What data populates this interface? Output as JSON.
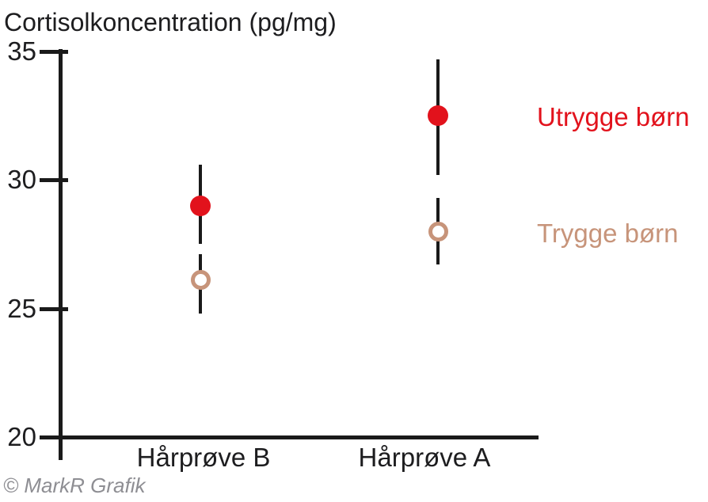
{
  "title": "Cortisolkoncentration (pg/mg)",
  "copyright": "© MarkR Grafik",
  "colors": {
    "utrygge_red": "#e2121c",
    "trygge_tan": "#c7947a",
    "axis_black": "#1a1a1a",
    "text_dark": "#1d1d1f",
    "copyright_gray": "#8e8e93"
  },
  "chart_data": {
    "type": "scatter",
    "title": "Cortisolkoncentration (pg/mg)",
    "ylabel": "Cortisolkoncentration (pg/mg)",
    "xlabel": "",
    "categories": [
      "Hårprøve B",
      "Hårprøve A"
    ],
    "series": [
      {
        "name": "Utrygge børn",
        "marker": "filled-circle",
        "color": "#e2121c",
        "values": [
          29.0,
          32.5
        ],
        "ci_low": [
          27.5,
          30.2
        ],
        "ci_high": [
          30.6,
          34.7
        ]
      },
      {
        "name": "Trygge børn",
        "marker": "open-circle",
        "color": "#c7947a",
        "values": [
          26.1,
          28.0
        ],
        "ci_low": [
          24.8,
          26.7
        ],
        "ci_high": [
          27.1,
          29.3
        ]
      }
    ],
    "ylim": [
      20,
      35
    ],
    "yticks": [
      35,
      30,
      25,
      20
    ],
    "grid": false,
    "error_bars": true,
    "legend_position": "right"
  }
}
